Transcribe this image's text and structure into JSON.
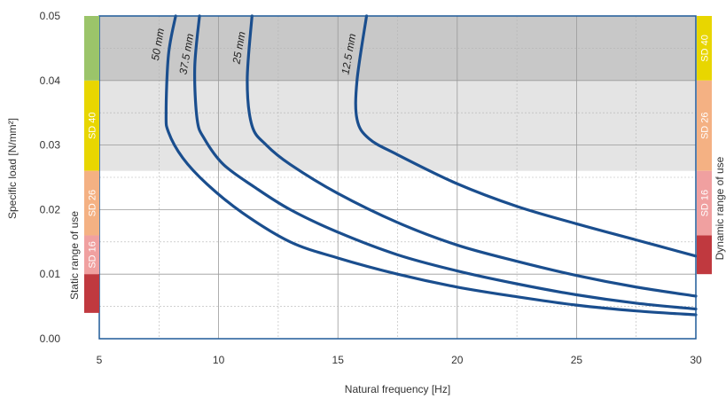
{
  "chart_data": {
    "type": "line",
    "xlabel": "Natural frequency [Hz]",
    "ylabel": "Specific load [N/mm²]",
    "xlim": [
      5,
      30
    ],
    "ylim": [
      0.0,
      0.05
    ],
    "x_ticks": [
      "5",
      "10",
      "15",
      "20",
      "25",
      "30"
    ],
    "y_ticks": [
      "0.00",
      "0.01",
      "0.02",
      "0.03",
      "0.04",
      "0.05"
    ],
    "grid": true,
    "colors": {
      "curve": "#1a4e8e",
      "frame": "#1f5a99",
      "dynamic_shade": "#c8c8c8",
      "static_shade": "#e4e4e4"
    },
    "shaded_regions": [
      {
        "y_range": [
          0.04,
          0.05
        ],
        "color": "#c8c8c8"
      },
      {
        "y_range": [
          0.026,
          0.04
        ],
        "color": "#e4e4e4"
      }
    ],
    "series": [
      {
        "name": "50 mm",
        "x": [
          8.2,
          7.9,
          7.8,
          7.9,
          8.5,
          9.5,
          11.0,
          13.0,
          15.0,
          17.5,
          20.0,
          22.5,
          25.0,
          27.5,
          30.0
        ],
        "y": [
          0.05,
          0.044,
          0.035,
          0.032,
          0.028,
          0.024,
          0.0195,
          0.015,
          0.0125,
          0.01,
          0.008,
          0.0065,
          0.0052,
          0.0043,
          0.0037
        ]
      },
      {
        "name": "37.5 mm",
        "x": [
          9.2,
          9.0,
          9.1,
          9.4,
          10.2,
          11.5,
          13.0,
          15.0,
          17.5,
          20.0,
          22.5,
          25.0,
          27.5,
          30.0
        ],
        "y": [
          0.05,
          0.042,
          0.034,
          0.031,
          0.027,
          0.0235,
          0.02,
          0.0165,
          0.013,
          0.0105,
          0.0085,
          0.0068,
          0.0055,
          0.0046
        ]
      },
      {
        "name": "25 mm",
        "x": [
          11.4,
          11.2,
          11.4,
          12.0,
          13.0,
          15.0,
          17.5,
          20.0,
          22.5,
          25.0,
          27.5,
          30.0
        ],
        "y": [
          0.05,
          0.04,
          0.033,
          0.03,
          0.027,
          0.0225,
          0.018,
          0.0145,
          0.012,
          0.0098,
          0.008,
          0.0066
        ]
      },
      {
        "name": "12.5 mm",
        "x": [
          16.2,
          15.8,
          15.8,
          16.3,
          17.5,
          20.0,
          22.5,
          25.0,
          27.5,
          30.0
        ],
        "y": [
          0.05,
          0.04,
          0.034,
          0.031,
          0.0285,
          0.024,
          0.0205,
          0.0178,
          0.0153,
          0.0128
        ]
      }
    ],
    "curve_labels": [
      {
        "text": "50 mm",
        "x": 7.6,
        "y": 0.0455
      },
      {
        "text": "37.5 mm",
        "x": 8.8,
        "y": 0.044
      },
      {
        "text": "25 mm",
        "x": 11.0,
        "y": 0.045
      },
      {
        "text": "12.5 mm",
        "x": 15.6,
        "y": 0.044
      }
    ],
    "static_range": {
      "label": "Static range of use",
      "bands": [
        {
          "name": "SD 40",
          "y_range": [
            0.026,
            0.04
          ],
          "color": "#e8d600"
        },
        {
          "name": "SD 26",
          "y_range": [
            0.016,
            0.026
          ],
          "color": "#f4b183"
        },
        {
          "name": "SD 16",
          "y_range": [
            0.01,
            0.016
          ],
          "color": "#f0a0a0"
        },
        {
          "name": "",
          "y_range": [
            0.004,
            0.01
          ],
          "color": "#c0393f"
        },
        {
          "name": "",
          "y_range": [
            0.04,
            0.05
          ],
          "color": "#9bc46a"
        }
      ]
    },
    "dynamic_range": {
      "label": "Dynamic range of use",
      "bands": [
        {
          "name": "SD 40",
          "y_range": [
            0.04,
            0.05
          ],
          "color": "#e8d600"
        },
        {
          "name": "SD 26",
          "y_range": [
            0.026,
            0.04
          ],
          "color": "#f4b183"
        },
        {
          "name": "SD 16",
          "y_range": [
            0.016,
            0.026
          ],
          "color": "#f0a0a0"
        },
        {
          "name": "",
          "y_range": [
            0.01,
            0.016
          ],
          "color": "#c0393f"
        }
      ]
    }
  }
}
